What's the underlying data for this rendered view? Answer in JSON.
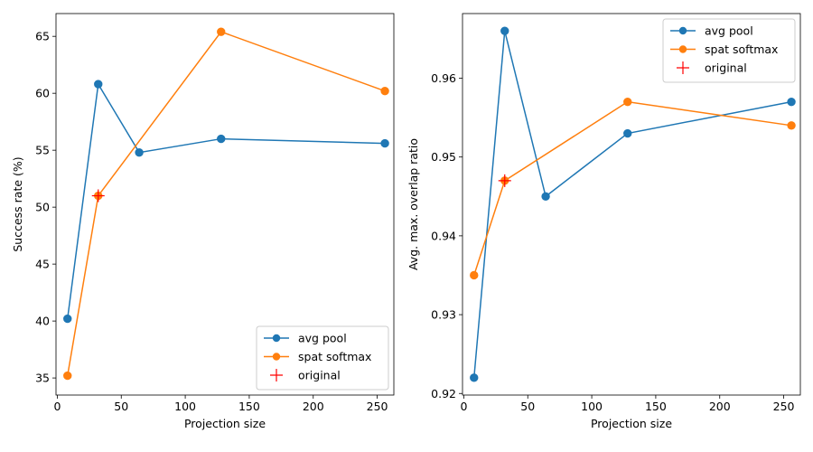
{
  "chart_data": [
    {
      "type": "line",
      "xlabel": "Projection size",
      "ylabel": "Success rate (%)",
      "xlim": [
        -1,
        263
      ],
      "ylim": [
        33.5,
        67.0
      ],
      "xticks": [
        0,
        50,
        100,
        150,
        200,
        250
      ],
      "yticks": [
        35,
        40,
        45,
        50,
        55,
        60,
        65
      ],
      "ytick_labels": [
        "35",
        "40",
        "45",
        "50",
        "55",
        "60",
        "65"
      ],
      "legend_position": "lower-right",
      "series": [
        {
          "name": "avg pool",
          "color": "#1f77b4",
          "marker": "circle",
          "x": [
            8,
            32,
            64,
            128,
            256
          ],
          "values": [
            40.2,
            60.8,
            54.8,
            56.0,
            55.6
          ]
        },
        {
          "name": "spat softmax",
          "color": "#ff7f0e",
          "marker": "circle",
          "x": [
            8,
            32,
            128,
            256
          ],
          "values": [
            35.2,
            51.0,
            65.4,
            60.2
          ]
        },
        {
          "name": "original",
          "color": "#ff0000",
          "marker": "plus",
          "x": [
            32
          ],
          "values": [
            51.0
          ]
        }
      ]
    },
    {
      "type": "line",
      "xlabel": "Projection size",
      "ylabel": "Avg. max. overlap ratio",
      "xlim": [
        -1,
        263
      ],
      "ylim": [
        0.9198,
        0.9682
      ],
      "xticks": [
        0,
        50,
        100,
        150,
        200,
        250
      ],
      "yticks": [
        0.92,
        0.93,
        0.94,
        0.95,
        0.96
      ],
      "ytick_labels": [
        "0.92",
        "0.93",
        "0.94",
        "0.95",
        "0.96"
      ],
      "legend_position": "upper-right",
      "series": [
        {
          "name": "avg pool",
          "color": "#1f77b4",
          "marker": "circle",
          "x": [
            8,
            32,
            64,
            128,
            256
          ],
          "values": [
            0.922,
            0.966,
            0.945,
            0.953,
            0.957
          ]
        },
        {
          "name": "spat softmax",
          "color": "#ff7f0e",
          "marker": "circle",
          "x": [
            8,
            32,
            128,
            256
          ],
          "values": [
            0.935,
            0.947,
            0.957,
            0.954
          ]
        },
        {
          "name": "original",
          "color": "#ff0000",
          "marker": "plus",
          "x": [
            32
          ],
          "values": [
            0.947
          ]
        }
      ]
    }
  ]
}
